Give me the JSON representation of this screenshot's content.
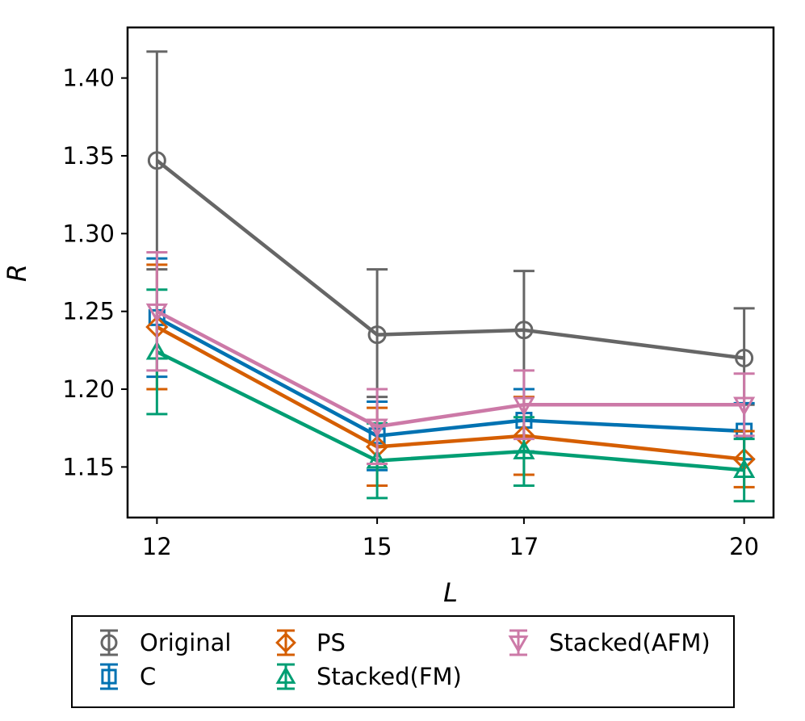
{
  "chart_data": {
    "type": "line",
    "title": "",
    "xlabel": "L",
    "ylabel": "R",
    "x": [
      12,
      15,
      17,
      20
    ],
    "xlim": [
      11.6,
      20.4
    ],
    "ylim": [
      1.1175,
      1.4325
    ],
    "xticks": [
      "12",
      "15",
      "17",
      "20"
    ],
    "yticks": [
      "1.15",
      "1.20",
      "1.25",
      "1.30",
      "1.35",
      "1.40"
    ],
    "ytick_values": [
      1.15,
      1.2,
      1.25,
      1.3,
      1.35,
      1.4
    ],
    "grid": false,
    "legend_position": "bottom",
    "series": [
      {
        "name": "Original",
        "color": "#666666",
        "marker": "circle",
        "values": [
          1.347,
          1.235,
          1.238,
          1.22
        ],
        "err_low": [
          0.07,
          0.04,
          0.038,
          0.03
        ],
        "err_high": [
          0.07,
          0.042,
          0.038,
          0.032
        ]
      },
      {
        "name": "C",
        "color": "#0072b2",
        "marker": "square",
        "values": [
          1.246,
          1.17,
          1.18,
          1.173
        ],
        "err_low": [
          0.038,
          0.022,
          0.02,
          0.018
        ],
        "err_high": [
          0.038,
          0.022,
          0.02,
          0.018
        ]
      },
      {
        "name": "PS",
        "color": "#d55e00",
        "marker": "diamond",
        "values": [
          1.24,
          1.163,
          1.17,
          1.155
        ],
        "err_low": [
          0.04,
          0.025,
          0.025,
          0.018
        ],
        "err_high": [
          0.04,
          0.025,
          0.025,
          0.018
        ]
      },
      {
        "name": "Stacked(FM)",
        "color": "#009e73",
        "marker": "triangle-up",
        "values": [
          1.224,
          1.154,
          1.16,
          1.148
        ],
        "err_low": [
          0.04,
          0.024,
          0.022,
          0.02
        ],
        "err_high": [
          0.04,
          0.024,
          0.022,
          0.02
        ]
      },
      {
        "name": "Stacked(AFM)",
        "color": "#cc79a7",
        "marker": "triangle-down",
        "values": [
          1.25,
          1.176,
          1.19,
          1.19
        ],
        "err_low": [
          0.038,
          0.024,
          0.022,
          0.02
        ],
        "err_high": [
          0.038,
          0.024,
          0.022,
          0.02
        ]
      }
    ]
  }
}
